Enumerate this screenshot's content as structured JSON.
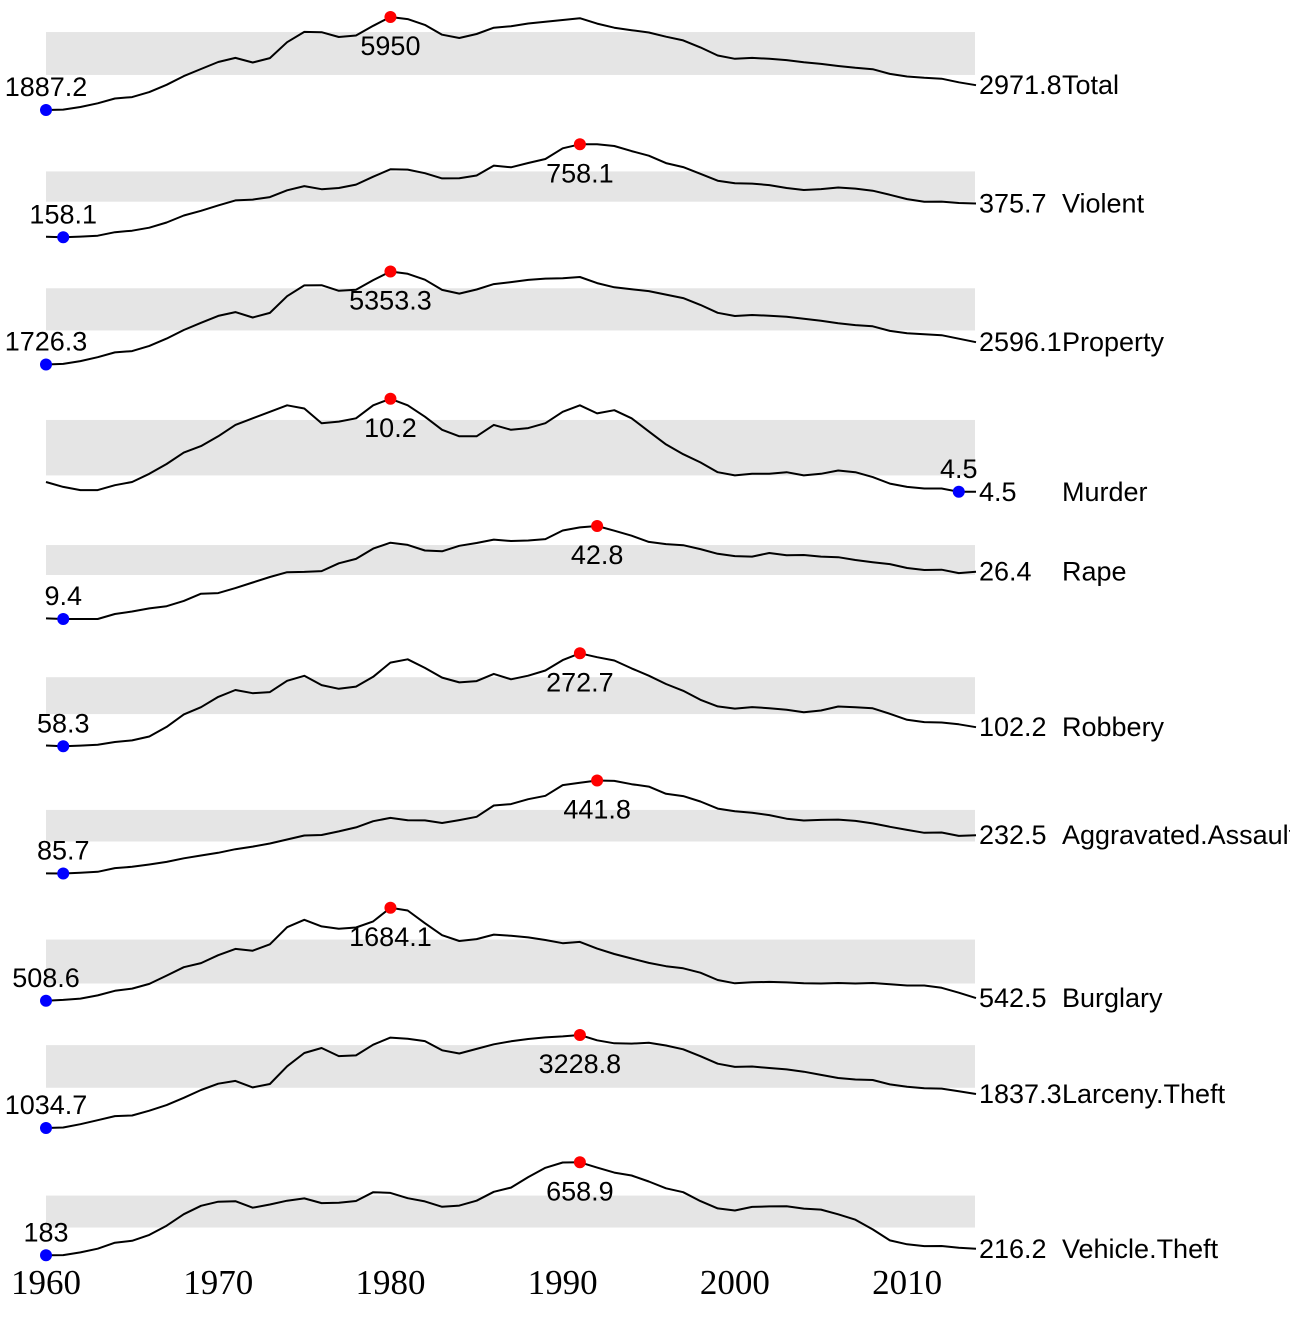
{
  "chart_data": {
    "type": "line",
    "title": "",
    "xlabel": "",
    "ylabel": "",
    "legend_position": "none",
    "grid": false,
    "band_meaning": "shaded horizontal band per row spans the interquartile range (Q1-Q3) of that series",
    "marker_meaning": {
      "blue_dot": "series minimum",
      "red_dot": "series maximum"
    },
    "colors": {
      "line": "#000000",
      "band": "#e5e5e5",
      "min_dot": "#0000ff",
      "max_dot": "#ff0000",
      "text": "#000000"
    },
    "x_range": [
      1960,
      2014
    ],
    "x_ticks": [
      "1960",
      "1970",
      "1980",
      "1990",
      "2000",
      "2010"
    ],
    "x": [
      1960,
      1961,
      1962,
      1963,
      1964,
      1965,
      1966,
      1967,
      1968,
      1969,
      1970,
      1971,
      1972,
      1973,
      1974,
      1975,
      1976,
      1977,
      1978,
      1979,
      1980,
      1981,
      1982,
      1983,
      1984,
      1985,
      1986,
      1987,
      1988,
      1989,
      1990,
      1991,
      1992,
      1993,
      1994,
      1995,
      1996,
      1997,
      1998,
      1999,
      2000,
      2001,
      2002,
      2003,
      2004,
      2005,
      2006,
      2007,
      2008,
      2009,
      2010,
      2011,
      2012,
      2013,
      2014
    ],
    "series": [
      {
        "name": "Total",
        "min_label": "1887.2",
        "max_label": "5950",
        "end_label": "2971.8",
        "values": [
          1887.2,
          1906.1,
          2019.8,
          2180.3,
          2388.1,
          2449.0,
          2670.8,
          2989.7,
          3370.2,
          3680.0,
          3984.5,
          4164.7,
          3961.4,
          4154.4,
          4850.4,
          5298.5,
          5287.3,
          5077.6,
          5140.3,
          5565.5,
          5950.0,
          5858.2,
          5603.6,
          5175.0,
          5031.3,
          5207.1,
          5480.4,
          5550.0,
          5664.2,
          5741.0,
          5820.3,
          5897.8,
          5660.2,
          5484.4,
          5373.5,
          5274.9,
          5087.6,
          4927.3,
          4620.1,
          4266.6,
          4124.8,
          4162.6,
          4125.0,
          4067.0,
          3977.3,
          3900.5,
          3808.1,
          3730.4,
          3669.0,
          3465.5,
          3350.4,
          3292.5,
          3255.8,
          3098.6,
          2971.8
        ]
      },
      {
        "name": "Violent",
        "min_label": "158.1",
        "max_label": "758.1",
        "end_label": "375.7",
        "values": [
          160.9,
          158.1,
          162.3,
          168.2,
          190.6,
          200.2,
          220.0,
          253.2,
          298.4,
          328.7,
          363.5,
          396.0,
          401.0,
          417.4,
          461.1,
          487.8,
          467.8,
          475.9,
          497.8,
          548.9,
          596.6,
          594.3,
          571.1,
          537.7,
          539.2,
          556.6,
          620.1,
          609.7,
          637.2,
          663.1,
          731.8,
          758.1,
          757.5,
          746.8,
          713.6,
          684.5,
          636.6,
          611.0,
          567.6,
          523.0,
          506.5,
          504.5,
          494.4,
          475.8,
          463.2,
          469.0,
          479.3,
          471.8,
          458.6,
          431.9,
          404.5,
          387.1,
          387.8,
          379.1,
          375.7
        ]
      },
      {
        "name": "Property",
        "min_label": "1726.3",
        "max_label": "5353.3",
        "end_label": "2596.1",
        "values": [
          1726.3,
          1747.9,
          1857.5,
          2012.1,
          2197.5,
          2248.8,
          2450.9,
          2736.5,
          3071.8,
          3351.3,
          3621.0,
          3768.8,
          3560.4,
          3737.0,
          4389.3,
          4810.7,
          4819.5,
          4601.7,
          4642.5,
          5016.6,
          5353.3,
          5263.9,
          5032.5,
          4637.4,
          4492.1,
          4650.5,
          4862.6,
          4940.3,
          5027.1,
          5077.9,
          5088.5,
          5139.7,
          4902.7,
          4737.7,
          4660.0,
          4590.5,
          4451.0,
          4316.3,
          4052.5,
          3743.6,
          3618.3,
          3658.1,
          3630.6,
          3591.2,
          3514.1,
          3431.5,
          3334.5,
          3263.5,
          3214.6,
          3036.1,
          2945.9,
          2905.4,
          2868.0,
          2730.7,
          2596.1
        ]
      },
      {
        "name": "Murder",
        "min_label": "4.5",
        "max_label": "10.2",
        "end_label": "4.5",
        "values": [
          5.1,
          4.8,
          4.6,
          4.6,
          4.9,
          5.1,
          5.6,
          6.2,
          6.9,
          7.3,
          7.9,
          8.6,
          9.0,
          9.4,
          9.8,
          9.6,
          8.7,
          8.8,
          9.0,
          9.8,
          10.2,
          9.8,
          9.1,
          8.3,
          7.9,
          7.9,
          8.6,
          8.3,
          8.4,
          8.7,
          9.4,
          9.8,
          9.3,
          9.5,
          9.0,
          8.2,
          7.4,
          6.8,
          6.3,
          5.7,
          5.5,
          5.6,
          5.6,
          5.7,
          5.5,
          5.6,
          5.8,
          5.7,
          5.4,
          5.0,
          4.8,
          4.7,
          4.7,
          4.5,
          4.5
        ]
      },
      {
        "name": "Rape",
        "min_label": "9.4",
        "max_label": "42.8",
        "end_label": "26.4",
        "values": [
          9.6,
          9.4,
          9.4,
          9.4,
          11.2,
          12.1,
          13.2,
          14.0,
          15.9,
          18.5,
          18.7,
          20.5,
          22.5,
          24.5,
          26.2,
          26.3,
          26.6,
          29.4,
          31.0,
          34.7,
          36.8,
          36.0,
          34.0,
          33.7,
          35.7,
          36.7,
          37.9,
          37.4,
          37.6,
          38.1,
          41.2,
          42.3,
          42.8,
          41.1,
          39.3,
          37.1,
          36.3,
          35.9,
          34.5,
          32.8,
          32.0,
          31.8,
          33.1,
          32.3,
          32.4,
          31.8,
          31.6,
          30.6,
          29.8,
          29.1,
          27.7,
          27.0,
          27.1,
          25.9,
          26.4
        ]
      },
      {
        "name": "Robbery",
        "min_label": "58.3",
        "max_label": "272.7",
        "end_label": "102.2",
        "values": [
          60.1,
          58.3,
          59.7,
          61.8,
          68.2,
          71.7,
          80.8,
          102.8,
          131.8,
          148.4,
          172.1,
          188.0,
          180.7,
          183.1,
          209.3,
          220.8,
          199.3,
          190.7,
          195.8,
          218.4,
          251.1,
          258.7,
          238.9,
          216.5,
          205.4,
          208.5,
          225.1,
          212.7,
          220.9,
          233.0,
          257.0,
          272.7,
          263.6,
          255.9,
          237.7,
          220.9,
          201.9,
          186.2,
          165.5,
          150.1,
          145.0,
          148.5,
          146.1,
          142.5,
          136.7,
          140.8,
          150.0,
          148.3,
          145.9,
          133.1,
          119.3,
          113.9,
          113.1,
          109.0,
          102.2
        ]
      },
      {
        "name": "Aggravated.Assault",
        "min_label": "85.7",
        "max_label": "441.8",
        "end_label": "232.5",
        "values": [
          86.1,
          85.7,
          88.6,
          92.4,
          106.2,
          111.3,
          120.3,
          130.2,
          143.8,
          154.5,
          164.8,
          178.8,
          188.8,
          200.5,
          215.8,
          231.1,
          233.2,
          247.0,
          262.1,
          286.0,
          298.5,
          289.3,
          289.0,
          279.2,
          290.2,
          302.9,
          346.1,
          351.3,
          370.2,
          383.4,
          424.1,
          433.3,
          441.8,
          440.3,
          427.6,
          418.3,
          390.9,
          382.1,
          361.4,
          334.3,
          324.0,
          318.6,
          309.5,
          295.4,
          288.6,
          290.8,
          292.0,
          287.2,
          277.5,
          264.7,
          252.8,
          241.5,
          242.8,
          229.6,
          232.5
        ]
      },
      {
        "name": "Burglary",
        "min_label": "508.6",
        "max_label": "1684.1",
        "end_label": "542.5",
        "values": [
          508.6,
          518.9,
          535.2,
          576.4,
          634.7,
          662.7,
          721.0,
          826.6,
          932.3,
          984.1,
          1084.9,
          1163.5,
          1140.8,
          1222.5,
          1437.7,
          1532.1,
          1448.2,
          1419.8,
          1434.6,
          1511.9,
          1684.1,
          1649.5,
          1488.8,
          1337.7,
          1263.7,
          1287.3,
          1344.6,
          1329.6,
          1309.2,
          1276.3,
          1235.9,
          1252.0,
          1168.2,
          1099.2,
          1042.0,
          987.1,
          945.0,
          918.8,
          863.2,
          770.4,
          728.8,
          741.8,
          747.0,
          741.0,
          730.3,
          726.9,
          733.1,
          726.1,
          733.0,
          717.7,
          701.0,
          701.3,
          672.2,
          610.5,
          542.5
        ]
      },
      {
        "name": "Larceny.Theft",
        "min_label": "1034.7",
        "max_label": "3228.8",
        "end_label": "1837.3",
        "values": [
          1034.7,
          1045.4,
          1124.8,
          1219.1,
          1315.5,
          1329.3,
          1442.9,
          1575.8,
          1746.6,
          1930.9,
          2079.3,
          2145.5,
          1993.6,
          2071.9,
          2489.5,
          2804.8,
          2921.3,
          2729.9,
          2747.4,
          2999.1,
          3167.0,
          3139.7,
          3084.8,
          2868.9,
          2791.3,
          2901.2,
          3010.3,
          3081.3,
          3134.9,
          3171.3,
          3194.8,
          3228.8,
          3103.0,
          3033.9,
          3026.7,
          3043.8,
          2980.3,
          2891.8,
          2729.5,
          2550.7,
          2477.3,
          2485.7,
          2450.7,
          2416.5,
          2362.3,
          2287.8,
          2213.2,
          2177.8,
          2166.1,
          2064.5,
          2005.8,
          1974.1,
          1965.4,
          1901.9,
          1837.3
        ]
      },
      {
        "name": "Vehicle.Theft",
        "min_label": "183",
        "max_label": "658.9",
        "end_label": "216.2",
        "values": [
          183.0,
          183.6,
          197.4,
          216.6,
          247.4,
          256.8,
          286.9,
          334.1,
          393.0,
          436.2,
          456.8,
          459.8,
          426.1,
          442.6,
          462.2,
          473.7,
          450.0,
          451.9,
          460.5,
          505.6,
          502.2,
          474.7,
          458.8,
          430.8,
          437.1,
          462.0,
          507.8,
          529.4,
          582.9,
          630.4,
          657.8,
          658.9,
          631.5,
          606.1,
          591.3,
          560.4,
          525.7,
          505.7,
          459.9,
          422.5,
          412.2,
          430.5,
          432.9,
          433.7,
          421.5,
          416.8,
          392.3,
          364.9,
          315.4,
          259.2,
          239.1,
          230.0,
          230.4,
          221.3,
          216.2
        ]
      }
    ]
  }
}
